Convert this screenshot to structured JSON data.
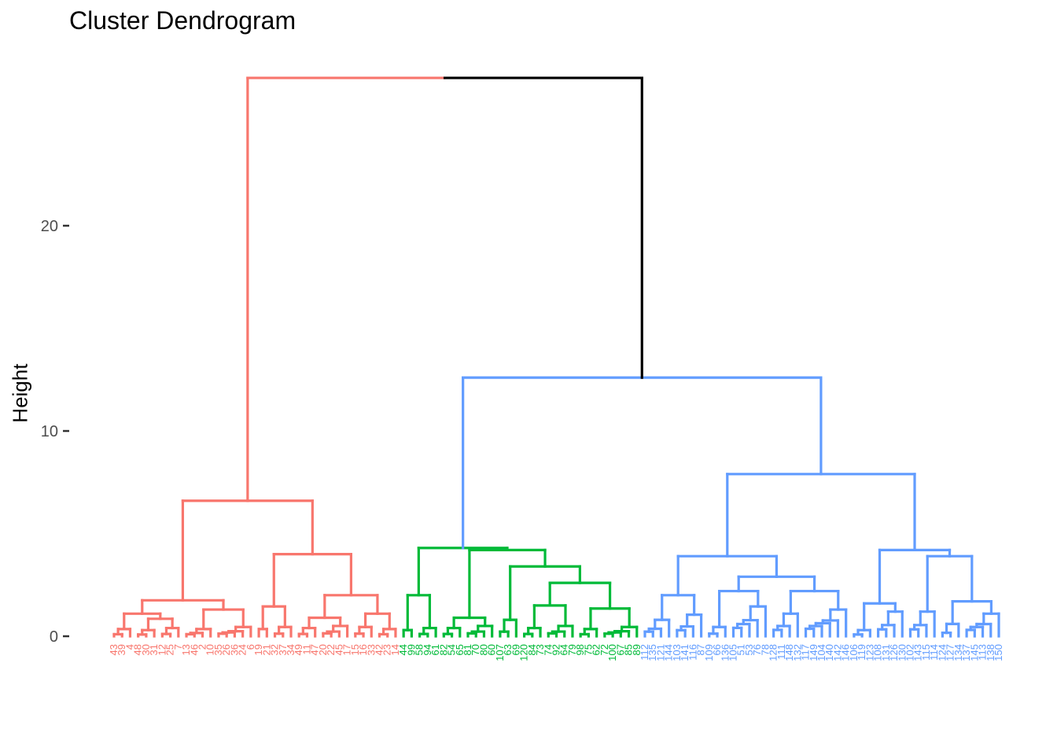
{
  "chart_data": {
    "type": "dendrogram",
    "title": "Cluster Dendrogram",
    "ylabel": "Height",
    "xlabel": "",
    "ylim": [
      0,
      27.2
    ],
    "y_ticks": [
      0,
      10,
      20
    ],
    "root_height": 27.2,
    "grid": false,
    "legend": "none",
    "colors": {
      "cluster1": "#F8766D",
      "cluster2": "#00BA38",
      "cluster3": "#619CFF",
      "root": "#000000"
    },
    "tree": {
      "h": 27.2,
      "c": "root",
      "children": [
        {
          "h": 6.6,
          "c": "cluster1",
          "children": [
            {
              "h": 1.75,
              "c": "cluster1",
              "children": [
                {
                  "h": 1.1,
                  "c": "cluster1",
                  "children": [
                    {
                      "h": 0.35,
                      "c": "cluster1",
                      "leaves": [
                        "43",
                        "39",
                        "4"
                      ]
                    },
                    {
                      "h": 0.85,
                      "c": "cluster1",
                      "children": [
                        {
                          "h": 0.3,
                          "c": "cluster1",
                          "leaves": [
                            "48",
                            "30",
                            "31"
                          ]
                        },
                        {
                          "h": 0.4,
                          "c": "cluster1",
                          "leaves": [
                            "12",
                            "25",
                            "7"
                          ]
                        }
                      ]
                    }
                  ]
                },
                {
                  "h": 1.3,
                  "c": "cluster1",
                  "children": [
                    {
                      "h": 0.35,
                      "c": "cluster1",
                      "leaves": [
                        "13",
                        "46",
                        "2",
                        "10"
                      ]
                    },
                    {
                      "h": 0.45,
                      "c": "cluster1",
                      "leaves": [
                        "35",
                        "26",
                        "36",
                        "24",
                        "6"
                      ]
                    }
                  ]
                }
              ]
            },
            {
              "h": 4.0,
              "c": "cluster1",
              "children": [
                {
                  "h": 1.45,
                  "c": "cluster1",
                  "children": [
                    {
                      "h": 0.35,
                      "c": "cluster1",
                      "leaves": [
                        "19",
                        "21"
                      ]
                    },
                    {
                      "h": 0.45,
                      "c": "cluster1",
                      "leaves": [
                        "32",
                        "37",
                        "34"
                      ]
                    }
                  ]
                },
                {
                  "h": 2.0,
                  "c": "cluster1",
                  "children": [
                    {
                      "h": 0.9,
                      "c": "cluster1",
                      "children": [
                        {
                          "h": 0.4,
                          "c": "cluster1",
                          "leaves": [
                            "49",
                            "11",
                            "47"
                          ]
                        },
                        {
                          "h": 0.5,
                          "c": "cluster1",
                          "leaves": [
                            "20",
                            "22",
                            "45",
                            "17"
                          ]
                        }
                      ]
                    },
                    {
                      "h": 1.1,
                      "c": "cluster1",
                      "children": [
                        {
                          "h": 0.45,
                          "c": "cluster1",
                          "leaves": [
                            "15",
                            "16",
                            "33"
                          ]
                        },
                        {
                          "h": 0.35,
                          "c": "cluster1",
                          "leaves": [
                            "42",
                            "23",
                            "14"
                          ]
                        }
                      ]
                    }
                  ]
                }
              ]
            }
          ]
        },
        {
          "h": 12.6,
          "c": "cluster3",
          "children": [
            {
              "h": 4.3,
              "c": "cluster2",
              "children": [
                {
                  "h": 2.0,
                  "c": "cluster2",
                  "children": [
                    {
                      "h": 0.3,
                      "c": "cluster2",
                      "leaves": [
                        "44",
                        "99"
                      ]
                    },
                    {
                      "h": 0.4,
                      "c": "cluster2",
                      "leaves": [
                        "58",
                        "94",
                        "61"
                      ]
                    }
                  ]
                },
                {
                  "h": 4.2,
                  "c": "cluster2",
                  "children": [
                    {
                      "h": 0.9,
                      "c": "cluster2",
                      "children": [
                        {
                          "h": 0.4,
                          "c": "cluster2",
                          "leaves": [
                            "82",
                            "54",
                            "65"
                          ]
                        },
                        {
                          "h": 0.5,
                          "c": "cluster2",
                          "leaves": [
                            "81",
                            "70",
                            "80",
                            "60"
                          ]
                        }
                      ]
                    },
                    {
                      "h": 3.4,
                      "c": "cluster2",
                      "children": [
                        {
                          "h": 0.8,
                          "c": "cluster2",
                          "leaves": [
                            "107",
                            "63",
                            "69"
                          ]
                        },
                        {
                          "h": 2.6,
                          "c": "cluster2",
                          "children": [
                            {
                              "h": 1.5,
                              "c": "cluster2",
                              "children": [
                                {
                                  "h": 0.4,
                                  "c": "cluster2",
                                  "leaves": [
                                    "120",
                                    "84",
                                    "73"
                                  ]
                                },
                                {
                                  "h": 0.5,
                                  "c": "cluster2",
                                  "leaves": [
                                    "74",
                                    "92",
                                    "64",
                                    "79"
                                  ]
                                }
                              ]
                            },
                            {
                              "h": 1.35,
                              "c": "cluster2",
                              "children": [
                                {
                                  "h": 0.35,
                                  "c": "cluster2",
                                  "leaves": [
                                    "98",
                                    "75",
                                    "62"
                                  ]
                                },
                                {
                                  "h": 0.45,
                                  "c": "cluster2",
                                  "leaves": [
                                    "72",
                                    "100",
                                    "67",
                                    "85",
                                    "89"
                                  ]
                                }
                              ]
                            }
                          ]
                        }
                      ]
                    }
                  ]
                }
              ]
            },
            {
              "h": 8.0,
              "c": "cluster3",
              "children": [
                {
                  "h": 7.9,
                  "c": "cluster3",
                  "children": [
                    {
                      "h": 3.9,
                      "c": "cluster3",
                      "children": [
                        {
                          "h": 2.0,
                          "c": "cluster3",
                          "children": [
                            {
                              "h": 0.8,
                              "c": "cluster3",
                              "leaves": [
                                "112",
                                "135",
                                "121",
                                "144"
                              ]
                            },
                            {
                              "h": 1.05,
                              "c": "cluster3",
                              "leaves": [
                                "103",
                                "141",
                                "116",
                                "87"
                              ]
                            }
                          ]
                        },
                        {
                          "h": 2.9,
                          "c": "cluster3",
                          "children": [
                            {
                              "h": 2.2,
                              "c": "cluster3",
                              "children": [
                                {
                                  "h": 0.45,
                                  "c": "cluster3",
                                  "leaves": [
                                    "109",
                                    "66",
                                    "136"
                                  ]
                                },
                                {
                                  "h": 1.45,
                                  "c": "cluster3",
                                  "leaves": [
                                    "105",
                                    "51",
                                    "53",
                                    "76",
                                    "78"
                                  ]
                                }
                              ]
                            },
                            {
                              "h": 2.2,
                              "c": "cluster3",
                              "children": [
                                {
                                  "h": 1.1,
                                  "c": "cluster3",
                                  "leaves": [
                                    "128",
                                    "111",
                                    "148",
                                    "132"
                                  ]
                                },
                                {
                                  "h": 1.3,
                                  "c": "cluster3",
                                  "leaves": [
                                    "117",
                                    "149",
                                    "104",
                                    "140",
                                    "142",
                                    "146"
                                  ]
                                }
                              ]
                            }
                          ]
                        }
                      ]
                    },
                    {
                      "h": 4.2,
                      "c": "cluster3",
                      "children": [
                        {
                          "h": 1.6,
                          "c": "cluster3",
                          "children": [
                            {
                              "h": 0.3,
                              "c": "cluster3",
                              "leaves": [
                                "106",
                                "119",
                                "123"
                              ]
                            },
                            {
                              "h": 1.2,
                              "c": "cluster3",
                              "leaves": [
                                "108",
                                "131",
                                "126",
                                "130"
                              ]
                            }
                          ]
                        },
                        {
                          "h": 3.9,
                          "c": "cluster3",
                          "children": [
                            {
                              "h": 1.2,
                              "c": "cluster3",
                              "leaves": [
                                "102",
                                "143",
                                "115",
                                "114"
                              ]
                            },
                            {
                              "h": 1.7,
                              "c": "cluster3",
                              "children": [
                                {
                                  "h": 0.6,
                                  "c": "cluster3",
                                  "leaves": [
                                    "124",
                                    "127",
                                    "134"
                                  ]
                                },
                                {
                                  "h": 1.1,
                                  "c": "cluster3",
                                  "leaves": [
                                    "137",
                                    "145",
                                    "113",
                                    "138",
                                    "150"
                                  ]
                                }
                              ]
                            }
                          ]
                        }
                      ]
                    }
                  ]
                }
              ]
            }
          ]
        }
      ]
    }
  }
}
